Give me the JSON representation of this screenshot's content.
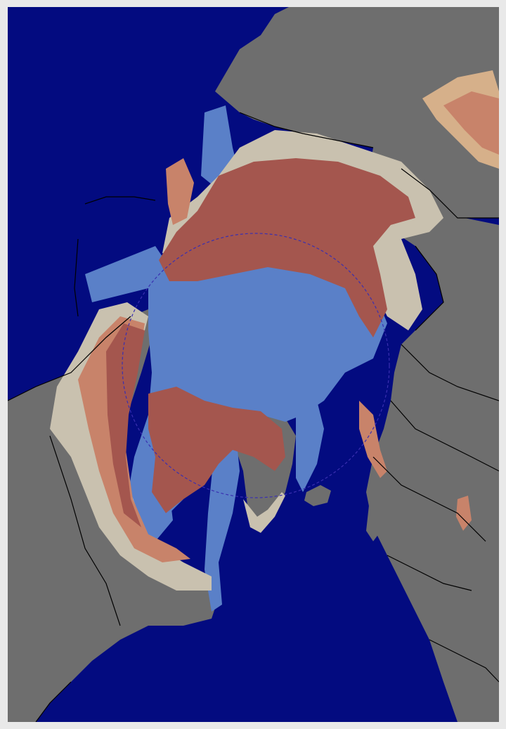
{
  "map": {
    "colors": {
      "ocean": "#030b80",
      "land": "#6e6e6e",
      "sea_ice": "#5a80c8",
      "snow_deep": "#a4564e",
      "snow_medium": "#c8836a",
      "snow_light": "#d6b08a",
      "snow_trace": "#c9c1af",
      "borders": "#000000",
      "arctic_circle": "#3a2fb0",
      "frame": "#e9e9e9"
    },
    "layers": [
      {
        "name": "ocean-layer",
        "color_key": "ocean"
      },
      {
        "name": "land-layer",
        "color_key": "land"
      },
      {
        "name": "sea-ice-layer",
        "color_key": "sea_ice"
      },
      {
        "name": "snow-cover-layer",
        "color_key": "snow_deep"
      },
      {
        "name": "borders-layer",
        "color_key": "borders"
      },
      {
        "name": "arctic-circle-layer",
        "color_key": "arctic_circle"
      }
    ]
  }
}
